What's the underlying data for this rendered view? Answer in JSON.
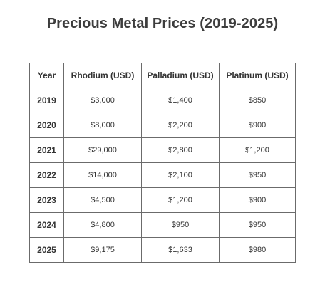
{
  "title": "Precious Metal Prices (2019-2025)",
  "chart_data": {
    "type": "table",
    "title": "Precious Metal Prices (2019-2025)",
    "columns": [
      "Year",
      "Rhodium (USD)",
      "Palladium (USD)",
      "Platinum (USD)"
    ],
    "rows": [
      [
        "2019",
        "$3,000",
        "$1,400",
        "$850"
      ],
      [
        "2020",
        "$8,000",
        "$2,200",
        "$900"
      ],
      [
        "2021",
        "$29,000",
        "$2,800",
        "$1,200"
      ],
      [
        "2022",
        "$14,000",
        "$2,100",
        "$950"
      ],
      [
        "2023",
        "$4,500",
        "$1,200",
        "$900"
      ],
      [
        "2024",
        "$4,800",
        "$950",
        "$950"
      ],
      [
        "2025",
        "$9,175",
        "$1,633",
        "$980"
      ]
    ]
  }
}
